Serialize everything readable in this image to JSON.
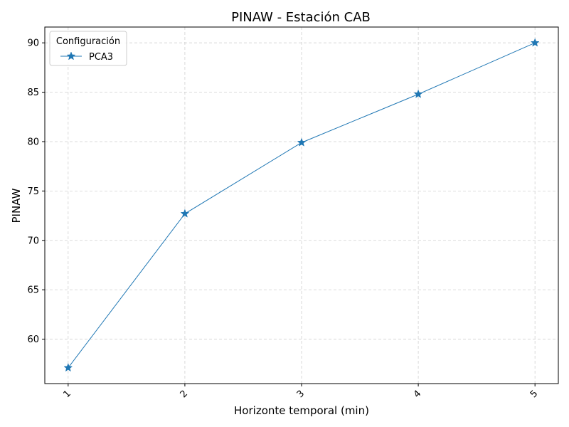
{
  "chart_data": {
    "type": "line",
    "title": "PINAW - Estación CAB",
    "xlabel": "Horizonte temporal (min)",
    "ylabel": "PINAW",
    "x": [
      1,
      2,
      3,
      4,
      5
    ],
    "x_tick_labels": [
      "1",
      "2",
      "3",
      "4",
      "5"
    ],
    "y_ticks": [
      60,
      65,
      70,
      75,
      80,
      85,
      90
    ],
    "y_tick_labels": [
      "60",
      "65",
      "70",
      "75",
      "80",
      "85",
      "90"
    ],
    "xlim": [
      0.8,
      5.2
    ],
    "ylim": [
      55.5,
      91.6
    ],
    "grid": true,
    "legend": {
      "title": "Configuración",
      "position": "top-left"
    },
    "series": [
      {
        "name": "PCA3",
        "values": [
          57.1,
          72.7,
          79.9,
          84.8,
          90.0
        ],
        "color": "#1f77b4",
        "marker": "star"
      }
    ]
  }
}
